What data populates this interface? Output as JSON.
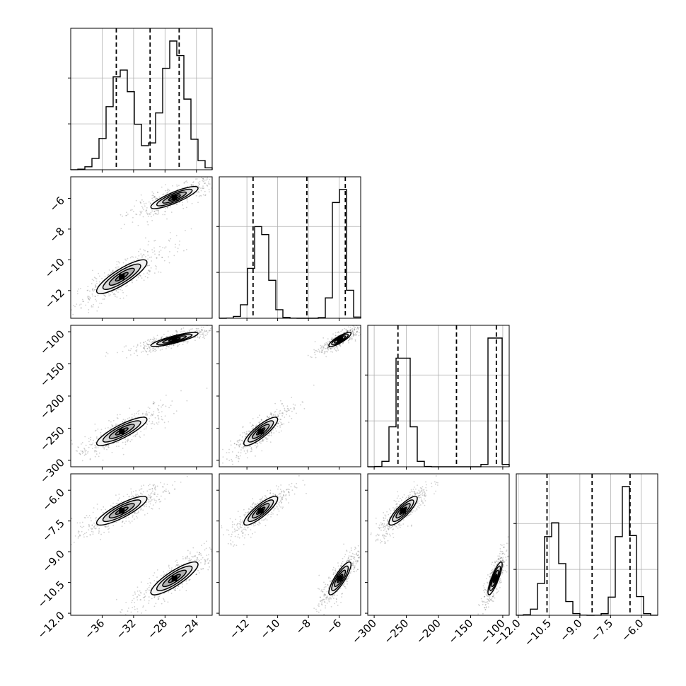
{
  "chart_data": {
    "type": "corner",
    "n_params": 4,
    "param_ranges": [
      [
        -40,
        -22
      ],
      [
        -13.8,
        -4.6
      ],
      [
        -310,
        -90
      ],
      [
        -12.1,
        -5.2
      ]
    ],
    "ticks": [
      {
        "values": [
          -36,
          -32,
          -28,
          -24
        ],
        "labels": [
          "−36",
          "−32",
          "−28",
          "−24"
        ]
      },
      {
        "values": [
          -12,
          -10,
          -8,
          -6
        ],
        "labels": [
          "−12",
          "−10",
          "−8",
          "−6"
        ]
      },
      {
        "values": [
          -300,
          -250,
          -200,
          -150,
          -100
        ],
        "labels": [
          "−300",
          "−250",
          "−200",
          "−150",
          "−100"
        ]
      },
      {
        "values": [
          -12.0,
          -10.5,
          -9.0,
          -7.5,
          -6.0
        ],
        "labels": [
          "−12.0",
          "−10.5",
          "−9.0",
          "−7.5",
          "−6.0"
        ]
      }
    ],
    "histograms": [
      {
        "max": 1.0,
        "quantiles": [
          -34.2,
          -29.9,
          -26.2
        ],
        "modes": [
          {
            "mu": -33.5,
            "sigma": 1.6,
            "w": 0.78
          },
          {
            "mu": -26.8,
            "sigma": 1.5,
            "w": 1.0
          }
        ]
      },
      {
        "max": 1.0,
        "quantiles": [
          -11.6,
          -8.1,
          -5.6
        ],
        "modes": [
          {
            "mu": -11.1,
            "sigma": 0.55,
            "w": 0.64
          },
          {
            "mu": -5.95,
            "sigma": 0.36,
            "w": 1.0
          }
        ]
      },
      {
        "max": 1.0,
        "quantiles": [
          -263,
          -172,
          -110
        ],
        "modes": [
          {
            "mu": -255,
            "sigma": 11,
            "w": 0.58
          },
          {
            "mu": -112,
            "sigma": 5.5,
            "w": 1.0
          }
        ]
      },
      {
        "max": 1.0,
        "quantiles": [
          -10.6,
          -8.4,
          -6.55
        ],
        "modes": [
          {
            "mu": -10.3,
            "sigma": 0.4,
            "w": 0.74
          },
          {
            "mu": -6.75,
            "sigma": 0.35,
            "w": 1.0
          }
        ]
      }
    ],
    "clusters": [
      {
        "centers": [
          -33.5,
          -11.1,
          -255,
          -7.0
        ],
        "sds": [
          1.6,
          0.55,
          11,
          0.35
        ]
      },
      {
        "centers": [
          -26.8,
          -5.95,
          -112,
          -10.3
        ],
        "sds": [
          1.5,
          0.36,
          5.5,
          0.4
        ]
      }
    ],
    "scatter_color": "#000000",
    "contour_fill": "#8c8c8c",
    "grid": true
  }
}
